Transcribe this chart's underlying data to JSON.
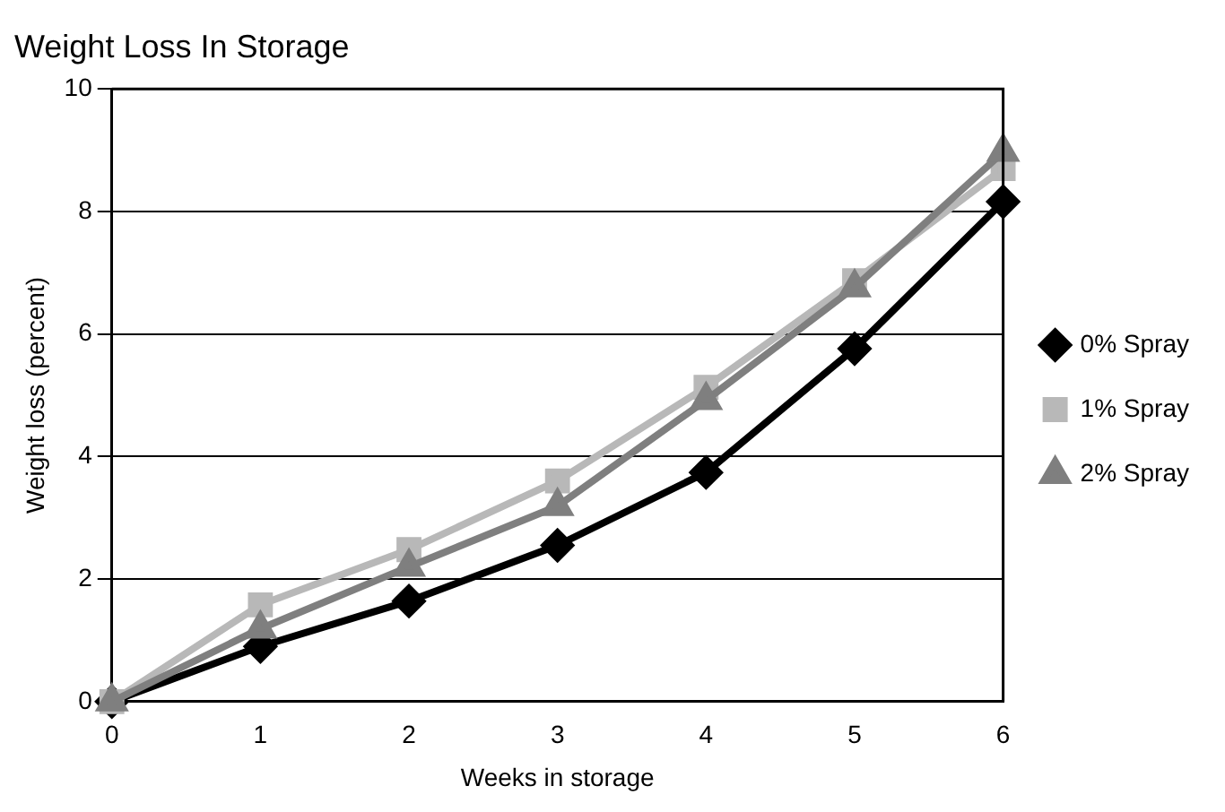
{
  "chart_data": {
    "type": "line",
    "title": "Weight Loss In Storage",
    "xlabel": "Weeks in storage",
    "ylabel": "Weight loss (percent)",
    "x": [
      0,
      1,
      2,
      3,
      4,
      5,
      6
    ],
    "xlim": [
      0,
      6
    ],
    "xticks": [
      0,
      1,
      2,
      3,
      4,
      5,
      6
    ],
    "ylim": [
      0,
      10
    ],
    "yticks": [
      0,
      2,
      4,
      6,
      8,
      10
    ],
    "grid": "y",
    "legend": "right",
    "line_style": "solid",
    "series": [
      {
        "name": "0% Spray",
        "color": "#000000",
        "marker": "diamond",
        "values": [
          0,
          0.9,
          1.64,
          2.55,
          3.74,
          5.76,
          8.16
        ]
      },
      {
        "name": "1% Spray",
        "color": "#b8b8b8",
        "marker": "square",
        "values": [
          0,
          1.58,
          2.48,
          3.6,
          5.13,
          6.87,
          8.7
        ]
      },
      {
        "name": "2% Spray",
        "color": "#7f7f7f",
        "marker": "triangle",
        "values": [
          0,
          1.19,
          2.2,
          3.19,
          4.92,
          6.76,
          8.97
        ]
      }
    ]
  }
}
